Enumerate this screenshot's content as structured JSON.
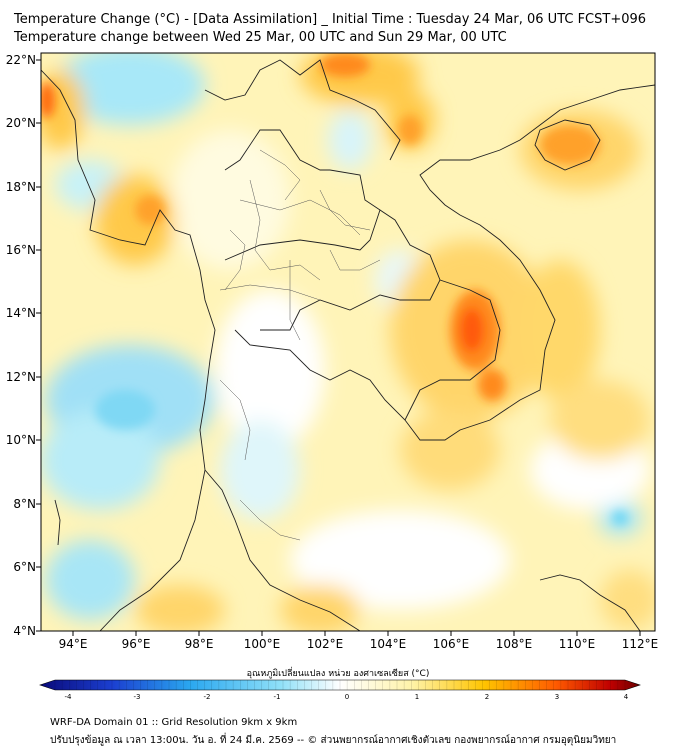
{
  "header": {
    "title_line1": "Temperature Change (°C) - [Data Assimilation] _ Initial Time : Tuesday 24 Mar, 06 UTC FCST+096",
    "title_line2": "Temperature change between Wed 25 Mar, 00 UTC and Sun 29 Mar, 00 UTC"
  },
  "map": {
    "lat_labels": [
      "22°N",
      "20°N",
      "18°N",
      "16°N",
      "14°N",
      "12°N",
      "10°N",
      "8°N",
      "6°N",
      "4°N"
    ],
    "lon_labels": [
      "94°E",
      "96°E",
      "98°E",
      "100°E",
      "102°E",
      "104°E",
      "106°E",
      "108°E",
      "110°E",
      "112°E"
    ]
  },
  "colorbar": {
    "label": "อุณหภูมิเปลี่ยนแปลง หน่วย องศาเซลเซียส (°C)",
    "ticks": [
      "-4",
      "-3",
      "-2",
      "-1",
      "0",
      "1",
      "2",
      "3",
      "4"
    ],
    "colors": [
      "#0a0a7a",
      "#1b3fd0",
      "#2aa7f0",
      "#8fe0f8",
      "#ffffff",
      "#fff3a8",
      "#ffc400",
      "#ff5a00",
      "#c00000",
      "#6b0000"
    ]
  },
  "footer": {
    "line1": "WRF-DA Domain 01 :: Grid Resolution 9km x 9km",
    "line2": "ปรับปรุงข้อมูล ณ เวลา 13:00น. วัน อ. ที่ 24 มี.ค. 2569 -- © ส่วนพยากรณ์อากาศเชิงตัวเลข กองพยากรณ์อากาศ กรมอุตุนิยมวิทยา"
  }
}
